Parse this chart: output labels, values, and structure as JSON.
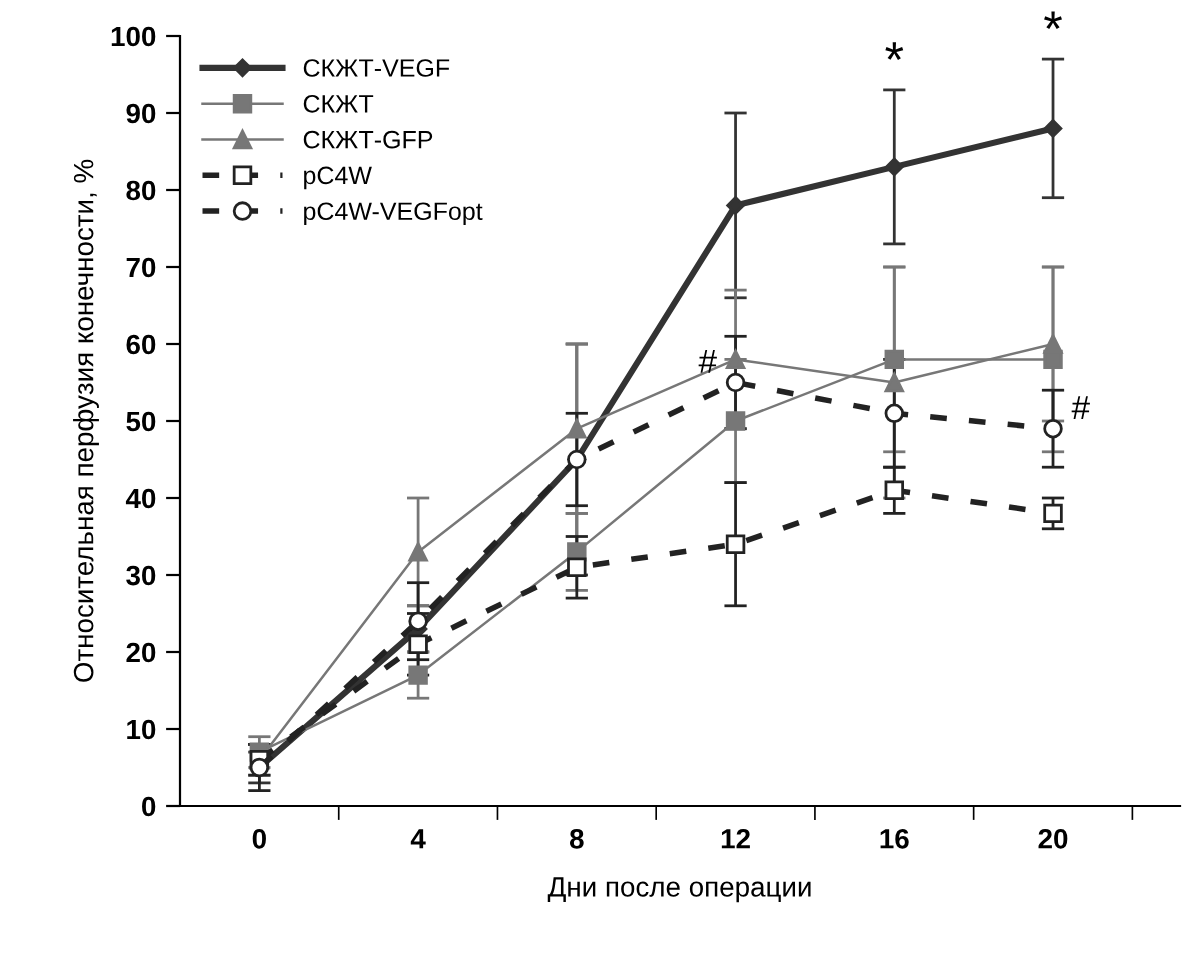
{
  "chart_data": {
    "type": "line",
    "xlabel": "Дни после операции",
    "ylabel": "Относительная перфузия конечности, %",
    "categories": [
      "0",
      "4",
      "8",
      "12",
      "16",
      "20"
    ],
    "ylim": [
      0,
      100
    ],
    "yticks": [
      0,
      10,
      20,
      30,
      40,
      50,
      60,
      70,
      80,
      90,
      100
    ],
    "legend": "top left",
    "series": [
      {
        "name": "СКЖТ-VEGF",
        "color": "#333333",
        "marker": "diamond",
        "line_style": "solid",
        "values": [
          5,
          23,
          45,
          78,
          83,
          88
        ],
        "errors": [
          2,
          3,
          15,
          12,
          10,
          9
        ]
      },
      {
        "name": "СКЖТ",
        "color": "#777777",
        "marker": "square",
        "line_style": "solid",
        "values": [
          7,
          17,
          33,
          50,
          58,
          58
        ],
        "errors": [
          2,
          3,
          5,
          8,
          12,
          12
        ]
      },
      {
        "name": "СКЖТ-GFP",
        "color": "#777777",
        "marker": "triangle",
        "line_style": "solid",
        "values": [
          6,
          33,
          49,
          58,
          55,
          60
        ],
        "errors": [
          2,
          7,
          11,
          9,
          15,
          10
        ]
      },
      {
        "name": "pC4W",
        "color": "#222222",
        "marker": "square",
        "line_style": "dashed",
        "values": [
          6,
          21,
          31,
          34,
          41,
          38
        ],
        "errors": [
          2,
          4,
          4,
          8,
          3,
          2
        ]
      },
      {
        "name": "pC4W-VEGFopt",
        "color": "#222222",
        "marker": "circle",
        "line_style": "dashed",
        "values": [
          5,
          24,
          45,
          55,
          51,
          49
        ],
        "errors": [
          3,
          5,
          6,
          6,
          7,
          5
        ]
      }
    ],
    "annotations": [
      {
        "text": "*",
        "x": "16",
        "y": 93
      },
      {
        "text": "*",
        "x": "20",
        "y": 97
      },
      {
        "text": "#",
        "x": "12",
        "y": 55
      },
      {
        "text": "#",
        "x": "20",
        "y": 49
      }
    ]
  }
}
